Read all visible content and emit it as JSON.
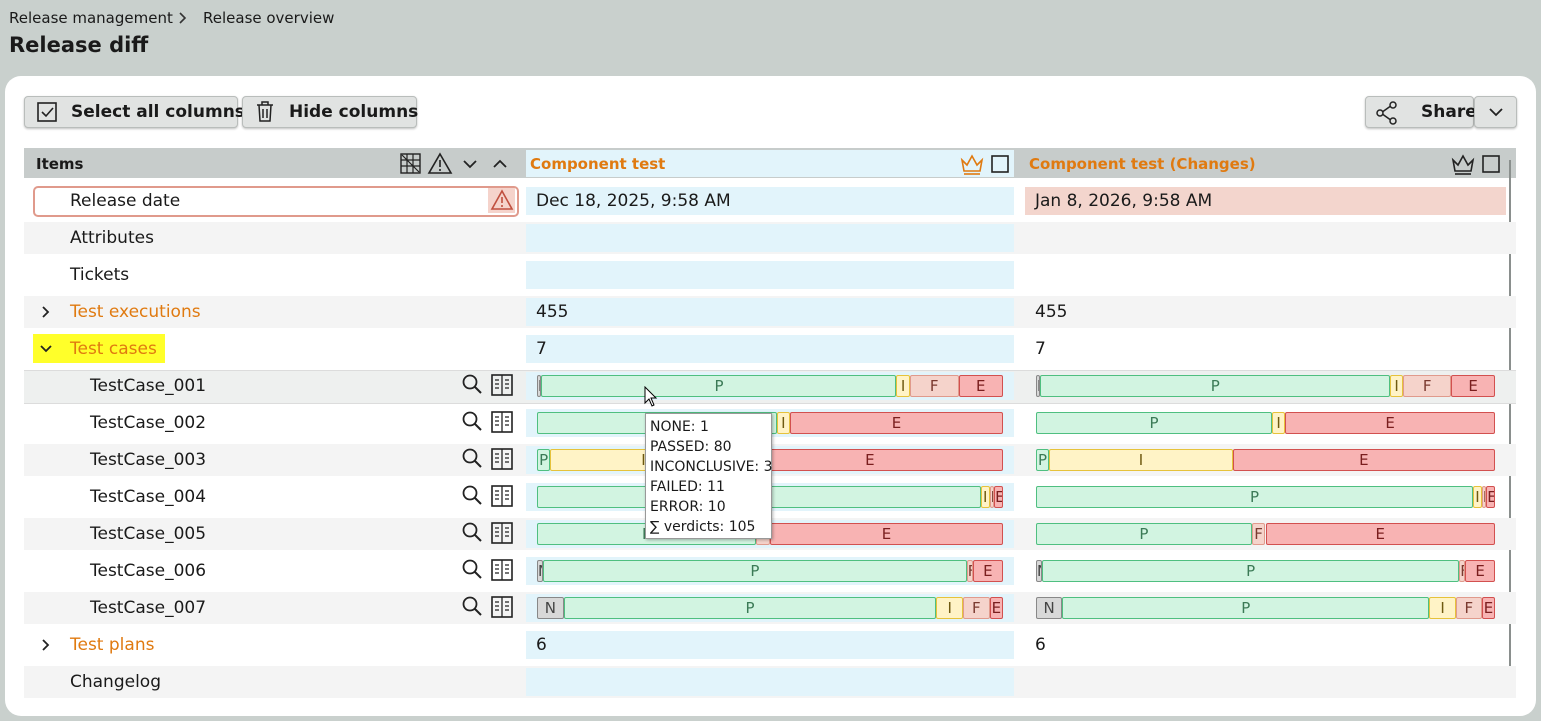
{
  "breadcrumb": [
    "Release management",
    "Release overview"
  ],
  "title": "Release diff",
  "toolbar": {
    "select_all": "Select all columns",
    "hide": "Hide columns",
    "share": "Share"
  },
  "table": {
    "items_header": "Items",
    "columns": [
      "Component test",
      "Component test (Changes)"
    ],
    "rows": [
      {
        "label": "Release date",
        "cells": [
          "Dec 18, 2025, 9:58 AM",
          "Jan 8, 2026, 9:58 AM"
        ],
        "warning": true,
        "changed": true
      },
      {
        "label": "Attributes"
      },
      {
        "label": "Tickets"
      },
      {
        "label": "Test executions",
        "expanded": false,
        "cells": [
          455,
          455
        ]
      },
      {
        "label": "Test cases",
        "expanded": true,
        "highlighted": true,
        "cells": [
          7,
          7
        ]
      },
      {
        "label": "TestCase_001",
        "verdicts": [
          [
            {
              "label": "N",
              "count": 1
            },
            {
              "label": "P",
              "count": 80
            },
            {
              "label": "I",
              "count": 3
            },
            {
              "label": "F",
              "count": 11
            },
            {
              "label": "E",
              "count": 10
            }
          ],
          [
            {
              "label": "N",
              "count": 1
            },
            {
              "label": "P",
              "count": 80
            },
            {
              "label": "I",
              "count": 3
            },
            {
              "label": "F",
              "count": 11
            },
            {
              "label": "E",
              "count": 10
            }
          ]
        ]
      },
      {
        "label": "TestCase_002",
        "verdicts": [
          [
            {
              "label": "P",
              "count": 54
            },
            {
              "label": "I",
              "count": 3
            },
            {
              "label": "E",
              "count": 48
            }
          ],
          [
            {
              "label": "P",
              "count": 54
            },
            {
              "label": "I",
              "count": 3
            },
            {
              "label": "E",
              "count": 48
            }
          ]
        ]
      },
      {
        "label": "TestCase_003",
        "verdicts": [
          [
            {
              "label": "P",
              "count": 3
            },
            {
              "label": "I",
              "count": 42
            },
            {
              "label": "E",
              "count": 60
            }
          ],
          [
            {
              "label": "P",
              "count": 3
            },
            {
              "label": "I",
              "count": 42
            },
            {
              "label": "E",
              "count": 60
            }
          ]
        ]
      },
      {
        "label": "TestCase_004",
        "verdicts": [
          [
            {
              "label": "P",
              "count": 100
            },
            {
              "label": "I",
              "count": 2
            },
            {
              "label": "F",
              "count": 1
            },
            {
              "label": "E",
              "count": 2
            }
          ],
          [
            {
              "label": "P",
              "count": 100
            },
            {
              "label": "I",
              "count": 2
            },
            {
              "label": "F",
              "count": 1
            },
            {
              "label": "E",
              "count": 2
            }
          ]
        ]
      },
      {
        "label": "TestCase_005",
        "verdicts": [
          [
            {
              "label": "P",
              "count": 47
            },
            {
              "label": "F",
              "count": 3
            },
            {
              "label": "E",
              "count": 50
            }
          ],
          [
            {
              "label": "P",
              "count": 47
            },
            {
              "label": "F",
              "count": 3
            },
            {
              "label": "E",
              "count": 50
            }
          ]
        ]
      },
      {
        "label": "TestCase_006",
        "verdicts": [
          [
            {
              "label": "N",
              "count": 1
            },
            {
              "label": "P",
              "count": 70
            },
            {
              "label": "F",
              "count": 1
            },
            {
              "label": "E",
              "count": 5
            }
          ],
          [
            {
              "label": "N",
              "count": 1
            },
            {
              "label": "P",
              "count": 70
            },
            {
              "label": "F",
              "count": 1
            },
            {
              "label": "E",
              "count": 5
            }
          ]
        ]
      },
      {
        "label": "TestCase_007",
        "verdicts": [
          [
            {
              "label": "N",
              "count": 2
            },
            {
              "label": "P",
              "count": 28
            },
            {
              "label": "I",
              "count": 2
            },
            {
              "label": "F",
              "count": 2
            },
            {
              "label": "E",
              "count": 1
            }
          ],
          [
            {
              "label": "N",
              "count": 2
            },
            {
              "label": "P",
              "count": 28
            },
            {
              "label": "I",
              "count": 2
            },
            {
              "label": "F",
              "count": 2
            },
            {
              "label": "E",
              "count": 1
            }
          ]
        ]
      },
      {
        "label": "Test plans",
        "expanded": false,
        "cells": [
          6,
          6
        ]
      },
      {
        "label": "Changelog"
      }
    ]
  },
  "tooltip": [
    "NONE: 1",
    "PASSED: 80",
    "INCONCLUSIVE: 3",
    "FAILED: 11",
    "ERROR: 10",
    "∑ verdicts: 105"
  ]
}
